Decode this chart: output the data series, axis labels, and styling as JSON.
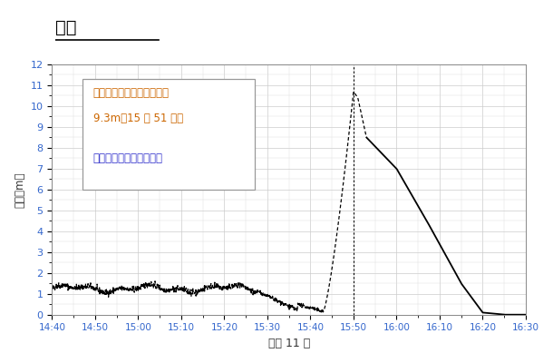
{
  "title": "相馬",
  "xlabel": "３月 11 日",
  "ylabel": "潮位（m）",
  "ylim": [
    0,
    12
  ],
  "yticks": [
    0,
    1,
    2,
    3,
    4,
    5,
    6,
    7,
    8,
    9,
    10,
    11,
    12
  ],
  "xtick_labels": [
    "14:40",
    "14:50",
    "15:00",
    "15:10",
    "15:20",
    "15:30",
    "15:40",
    "15:50",
    "16:00",
    "16:10",
    "16:20",
    "16:30"
  ],
  "xtick_minutes": [
    0,
    10,
    20,
    30,
    40,
    50,
    60,
    70,
    80,
    90,
    100,
    110
  ],
  "annotation_line1": "観測された津波の最大高さ",
  "annotation_line2": "9.3m（15 時 51 分）",
  "annotation_line3": "実線が回収されたデータ",
  "peak_minute": 70,
  "peak_value": 10.7,
  "switch_minute": 73,
  "background_color": "#ffffff",
  "grid_color": "#cccccc",
  "line_color": "#000000",
  "ann_color1": "#cc6600",
  "ann_color3": "#3333cc"
}
